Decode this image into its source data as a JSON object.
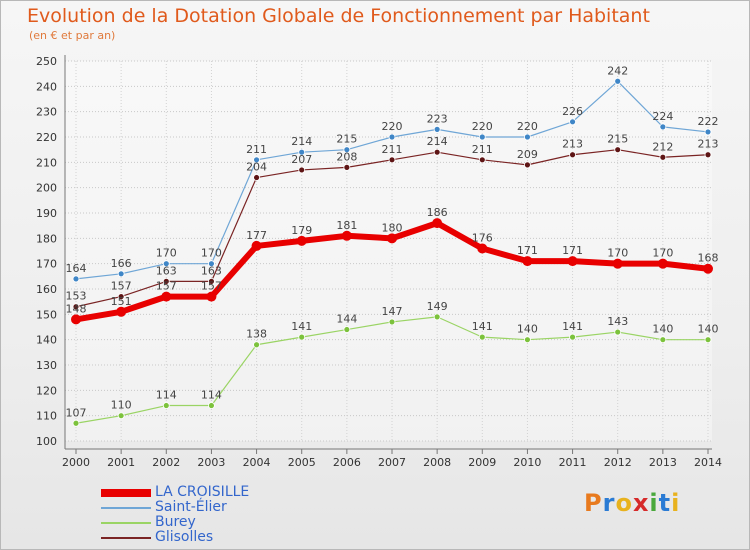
{
  "logo": {
    "text": "Proxiti",
    "letters": [
      "P",
      "r",
      "o",
      "x",
      "i",
      "t",
      "i"
    ],
    "colors": [
      "#e87a1e",
      "#2a7bd4",
      "#e8b21e",
      "#d62a2a",
      "#49a83c",
      "#2a7bd4",
      "#e8b21e"
    ]
  },
  "chart_data": {
    "type": "line",
    "title": "Evolution de la Dotation Globale de Fonctionnement par Habitant",
    "subtitle": "(en € et par an)",
    "xlabel": "",
    "ylabel": "",
    "ylim": [
      100,
      250
    ],
    "ystep": 10,
    "grid": true,
    "categories": [
      "2000",
      "2001",
      "2002",
      "2003",
      "2004",
      "2005",
      "2006",
      "2007",
      "2008",
      "2009",
      "2010",
      "2011",
      "2012",
      "2013",
      "2014"
    ],
    "series": [
      {
        "name": "LA CROISILLE",
        "color": "#e80000",
        "width": 6,
        "marker": 5,
        "emphasis": true,
        "values": [
          148,
          151,
          157,
          157,
          177,
          179,
          181,
          180,
          186,
          176,
          171,
          171,
          170,
          170,
          168
        ]
      },
      {
        "name": "Saint-Élier",
        "color": "#6fa6d6",
        "width": 1.2,
        "marker": 3,
        "marker_color": "#3f86c7",
        "values": [
          164,
          166,
          170,
          170,
          211,
          214,
          215,
          220,
          223,
          220,
          220,
          226,
          242,
          224,
          222
        ]
      },
      {
        "name": "Burey",
        "color": "#9ad464",
        "width": 1.2,
        "marker": 3,
        "marker_color": "#7cc23c",
        "values": [
          107,
          110,
          114,
          114,
          138,
          141,
          144,
          147,
          149,
          141,
          140,
          141,
          143,
          140,
          140
        ]
      },
      {
        "name": "Glisolles",
        "color": "#7a2424",
        "width": 1.2,
        "marker": 3,
        "marker_color": "#5e1515",
        "values": [
          153,
          157,
          163,
          163,
          204,
          207,
          208,
          211,
          214,
          211,
          209,
          213,
          215,
          212,
          213
        ]
      }
    ],
    "legend_position": "bottom-left"
  }
}
